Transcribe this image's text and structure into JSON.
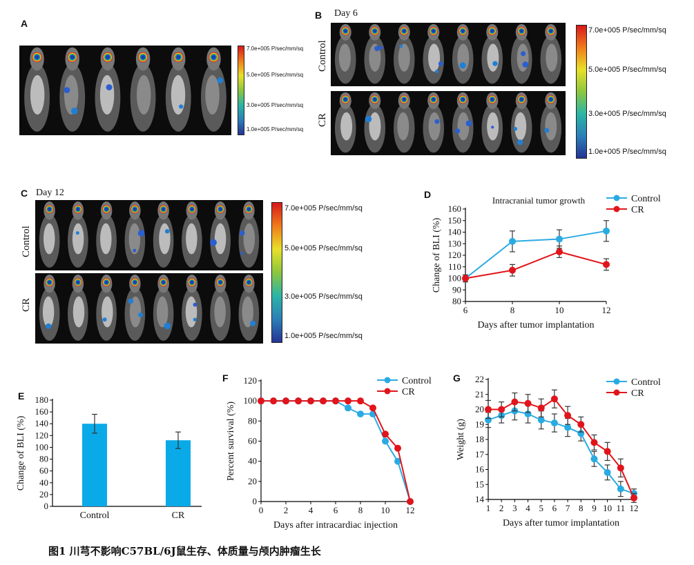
{
  "panels": {
    "A": {
      "label": "A",
      "scale": [
        "7.0e+005 P/sec/mm/sq",
        "5.0e+005 P/sec/mm/sq",
        "3.0e+005 P/sec/mm/sq",
        "1.0e+005 P/sec/mm/sq"
      ]
    },
    "B": {
      "label": "B",
      "day": "Day 6",
      "groups": [
        "Control",
        "CR"
      ],
      "scale": [
        "7.0e+005 P/sec/mm/sq",
        "5.0e+005 P/sec/mm/sq",
        "3.0e+005 P/sec/mm/sq",
        "1.0e+005 P/sec/mm/sq"
      ]
    },
    "C": {
      "label": "C",
      "day": "Day 12",
      "groups": [
        "Control",
        "CR"
      ],
      "scale": [
        "7.0e+005 P/sec/mm/sq",
        "5.0e+005 P/sec/mm/sq",
        "3.0e+005 P/sec/mm/sq",
        "1.0e+005 P/sec/mm/sq"
      ]
    },
    "D": {
      "label": "D"
    },
    "E": {
      "label": "E"
    },
    "F": {
      "label": "F"
    },
    "G": {
      "label": "G"
    }
  },
  "colors": {
    "control": "#29abe2",
    "cr": "#e0151b",
    "bar": "#0aaae8"
  },
  "chart_data": [
    {
      "id": "D",
      "type": "line",
      "title": "Intracranial tumor growth",
      "xlabel": "Days after tumor implantation",
      "ylabel": "Change of BLI (%)",
      "xlim": [
        6,
        12
      ],
      "ylim": [
        80,
        160
      ],
      "xticks": [
        6,
        8,
        10,
        12
      ],
      "yticks": [
        80,
        90,
        100,
        110,
        120,
        130,
        140,
        150,
        160
      ],
      "series": [
        {
          "name": "Control",
          "x": [
            6,
            8,
            10,
            12
          ],
          "values": [
            100,
            132,
            134,
            141
          ],
          "error": [
            3,
            9,
            8,
            9
          ]
        },
        {
          "name": "CR",
          "x": [
            6,
            8,
            10,
            12
          ],
          "values": [
            100,
            107,
            123,
            112
          ],
          "error": [
            3,
            5,
            5,
            5
          ]
        }
      ],
      "legend": "top-right"
    },
    {
      "id": "E",
      "type": "bar",
      "xlabel": "",
      "ylabel": "Change of BLI (%)",
      "ylim": [
        0,
        180
      ],
      "yticks": [
        0,
        20,
        40,
        60,
        80,
        100,
        120,
        140,
        160,
        180
      ],
      "categories": [
        "Control",
        "CR"
      ],
      "values": [
        140,
        112
      ],
      "error": [
        16,
        14
      ]
    },
    {
      "id": "F",
      "type": "line",
      "xlabel": "Days after intracardiac injection",
      "ylabel": "Percent survival (%)",
      "xlim": [
        0,
        12
      ],
      "ylim": [
        0,
        120
      ],
      "xticks": [
        0,
        2,
        4,
        6,
        8,
        10,
        12
      ],
      "yticks": [
        0,
        20,
        40,
        60,
        80,
        100,
        120
      ],
      "series": [
        {
          "name": "Control",
          "x": [
            0,
            1,
            2,
            3,
            4,
            5,
            6,
            7,
            8,
            9,
            10,
            11,
            12
          ],
          "values": [
            100,
            100,
            100,
            100,
            100,
            100,
            100,
            93,
            87,
            87,
            60,
            40,
            0
          ]
        },
        {
          "name": "CR",
          "x": [
            0,
            1,
            2,
            3,
            4,
            5,
            6,
            7,
            8,
            9,
            10,
            11,
            12
          ],
          "values": [
            100,
            100,
            100,
            100,
            100,
            100,
            100,
            100,
            100,
            93,
            67,
            53,
            0
          ]
        }
      ],
      "legend": "top-right"
    },
    {
      "id": "G",
      "type": "line",
      "xlabel": "Days after tumor implantation",
      "ylabel": "Weight (g)",
      "xlim": [
        1,
        12
      ],
      "ylim": [
        14,
        22
      ],
      "xticks": [
        1,
        2,
        3,
        4,
        5,
        6,
        7,
        8,
        9,
        10,
        11,
        12
      ],
      "yticks": [
        14,
        15,
        16,
        17,
        18,
        19,
        20,
        21,
        22
      ],
      "series": [
        {
          "name": "Control",
          "x": [
            1,
            2,
            3,
            4,
            5,
            6,
            7,
            8,
            9,
            10,
            11,
            12
          ],
          "values": [
            19.3,
            19.6,
            19.9,
            19.7,
            19.3,
            19.1,
            18.8,
            18.4,
            16.7,
            15.8,
            14.7,
            14.4
          ],
          "error": [
            0.5,
            0.5,
            0.6,
            0.6,
            0.6,
            0.6,
            0.6,
            0.5,
            0.5,
            0.5,
            0.5,
            0.3
          ]
        },
        {
          "name": "CR",
          "x": [
            1,
            2,
            3,
            4,
            5,
            6,
            7,
            8,
            9,
            10,
            11,
            12
          ],
          "values": [
            20.0,
            20.0,
            20.5,
            20.4,
            20.1,
            20.7,
            19.6,
            19.0,
            17.8,
            17.2,
            16.1,
            14.1
          ],
          "error": [
            0.6,
            0.5,
            0.6,
            0.6,
            0.6,
            0.6,
            0.6,
            0.5,
            0.5,
            0.6,
            0.6,
            0.3
          ]
        }
      ],
      "legend": "top-right"
    }
  ],
  "caption": "图1 川芎不影响C57BL/6J鼠生存、体质量与颅内肿瘤生长"
}
